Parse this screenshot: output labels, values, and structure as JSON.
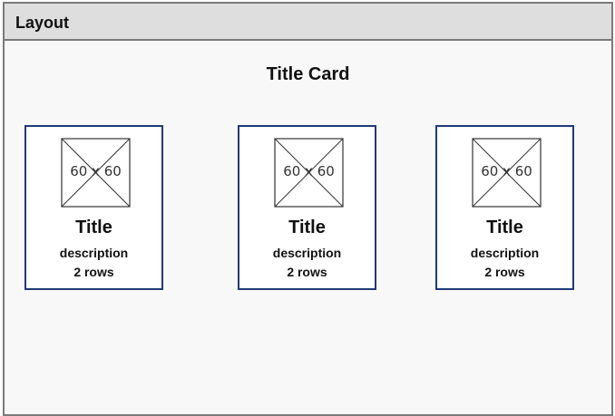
{
  "window": {
    "title": "Layout"
  },
  "main": {
    "heading": "Title Card"
  },
  "cards": [
    {
      "image_placeholder": "60 x 60",
      "title": "Title",
      "description_line1": "description",
      "description_line2": "2 rows"
    },
    {
      "image_placeholder": "60 x 60",
      "title": "Title",
      "description_line1": "description",
      "description_line2": "2 rows"
    },
    {
      "image_placeholder": "60 x 60",
      "title": "Title",
      "description_line1": "description",
      "description_line2": "2 rows"
    }
  ],
  "colors": {
    "card_border": "#1f3a7a",
    "frame_border": "#7a7a7a",
    "header_background": "#dedede",
    "canvas_background": "#f8f8f8"
  }
}
